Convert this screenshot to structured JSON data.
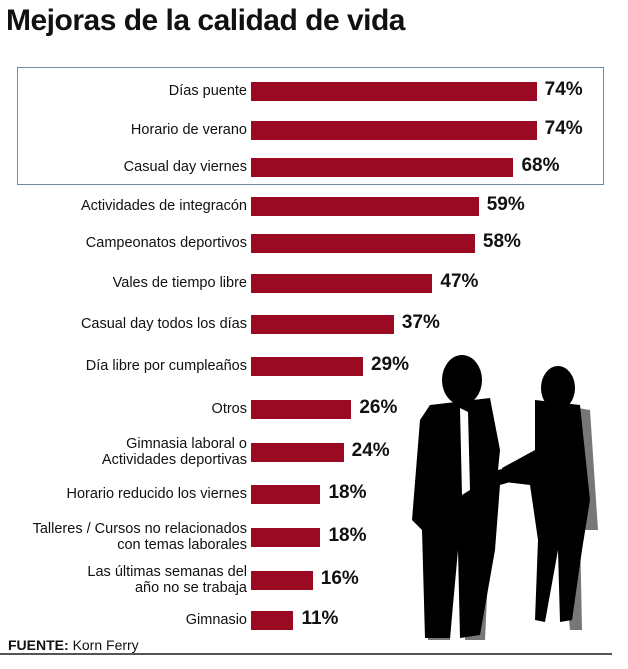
{
  "title": "Mejoras de la calidad de vida",
  "source_label": "FUENTE:",
  "source": "Korn Ferry",
  "chart_data": {
    "type": "bar",
    "orientation": "horizontal",
    "title": "Mejoras de la calidad de vida",
    "bar_color": "#9b0a23",
    "categories": [
      "Días puente",
      "Horario de verano",
      "Casual day viernes",
      "Actividades de integracón",
      "Campeonatos deportivos",
      "Vales de tiempo libre",
      "Casual day todos los días",
      "Día libre por cumpleaños",
      "Otros",
      "Gimnasia laboral o\nActividades deportivas",
      "Horario reducido los viernes",
      "Talleres / Cursos no relacionados\ncon temas laborales",
      "Las últimas semanas del\naño no se trabaja",
      "Gimnasio"
    ],
    "values": [
      74,
      74,
      68,
      59,
      58,
      47,
      37,
      29,
      26,
      24,
      18,
      18,
      16,
      11
    ],
    "value_labels": [
      "74%",
      "74%",
      "68%",
      "59%",
      "58%",
      "47%",
      "37%",
      "29%",
      "26%",
      "24%",
      "18%",
      "18%",
      "16%",
      "11%"
    ],
    "highlighted_group": [
      "Días puente",
      "Horario de verano",
      "Casual day viernes"
    ],
    "grid": false
  }
}
